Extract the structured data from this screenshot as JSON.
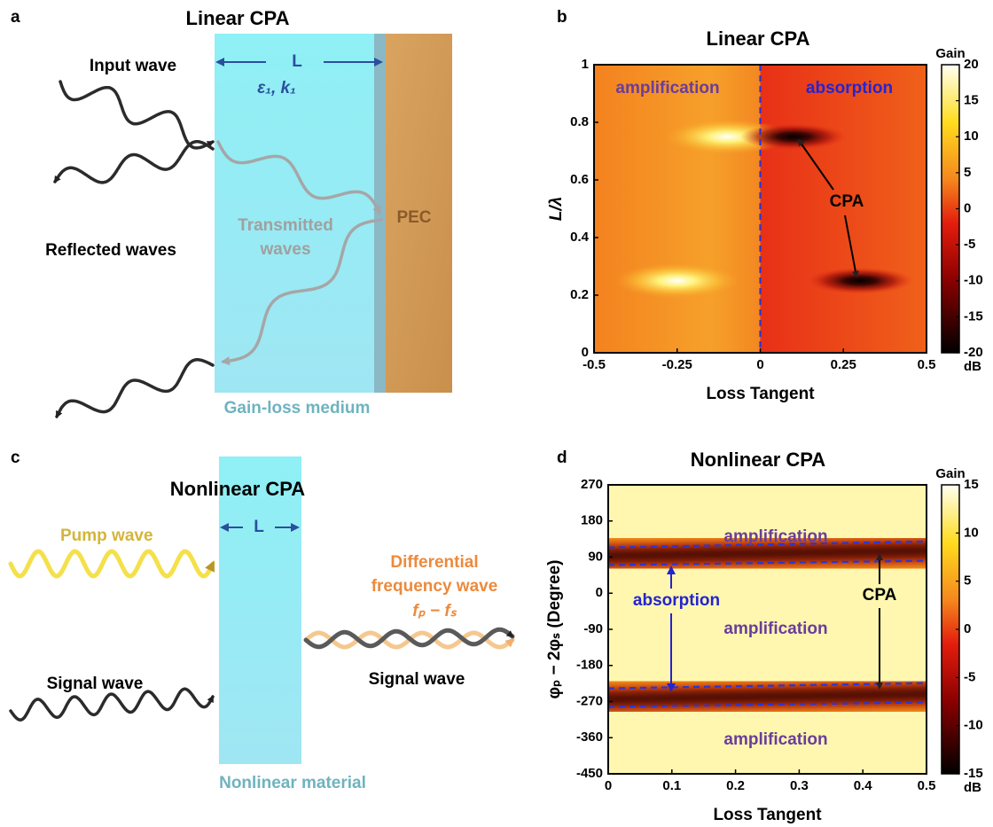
{
  "panels": {
    "a": {
      "letter": "a",
      "title": "Linear CPA",
      "input": "Input wave",
      "length": "L",
      "params": "ε₁,  k₁",
      "transmitted": [
        "Transmitted",
        "waves"
      ],
      "pec": "PEC",
      "reflected": "Reflected waves",
      "medium": "Gain-loss medium"
    },
    "c": {
      "letter": "c",
      "title": "Nonlinear CPA",
      "length": "L",
      "pump": "Pump wave",
      "signal_in": "Signal wave",
      "difference": [
        "Differential",
        "frequency wave"
      ],
      "formula": "fₚ − fₛ",
      "signal_out": "Signal wave",
      "medium": "Nonlinear material"
    }
  },
  "chart_data": [
    {
      "type": "heatmap",
      "letter": "b",
      "title": "Linear CPA",
      "xlabel": "Loss Tangent",
      "ylabel": "L/λ",
      "xlim": [
        -0.5,
        0.5
      ],
      "xticks": [
        -0.5,
        -0.25,
        0,
        0.25,
        0.5
      ],
      "ylim": [
        0,
        1
      ],
      "yticks": [
        0,
        0.2,
        0.4,
        0.6,
        0.8,
        1
      ],
      "colorbar": {
        "title": "Gain",
        "unit": "dB",
        "lim": [
          -20,
          20
        ],
        "ticks": [
          20,
          15,
          10,
          5,
          0,
          -5,
          -10,
          -15,
          -20
        ]
      },
      "vline": {
        "x": 0,
        "color": "#2b35d8"
      },
      "spots": [
        {
          "x": -0.1,
          "y": 0.75,
          "kind": "gain"
        },
        {
          "x": -0.25,
          "y": 0.25,
          "kind": "gain"
        },
        {
          "x": 0.1,
          "y": 0.75,
          "kind": "loss"
        },
        {
          "x": 0.3,
          "y": 0.25,
          "kind": "loss"
        }
      ],
      "annotations": [
        {
          "text": "amplification",
          "color": "#6a3d9a"
        },
        {
          "text": "absorption",
          "color": "#2424d0"
        },
        {
          "text": "CPA",
          "color": "#000000"
        }
      ]
    },
    {
      "type": "heatmap",
      "letter": "d",
      "title": "Nonlinear CPA",
      "xlabel": "Loss Tangent",
      "ylabel": "φₚ − 2φₛ (Degree)",
      "xlim": [
        0,
        0.5
      ],
      "xticks": [
        0,
        0.1,
        0.2,
        0.3,
        0.4,
        0.5
      ],
      "ylim": [
        -450,
        270
      ],
      "yticks": [
        270,
        180,
        90,
        0,
        -90,
        -180,
        -270,
        -360,
        -450
      ],
      "colorbar": {
        "title": "Gain",
        "unit": "dB",
        "lim": [
          -15,
          15
        ],
        "ticks": [
          15,
          10,
          5,
          0,
          -5,
          -10,
          -15
        ]
      },
      "bands": [
        {
          "x": [
            0,
            0.5
          ],
          "y": [
            92,
            107
          ]
        },
        {
          "x": [
            0,
            0.5
          ],
          "y": [
            -265,
            -250
          ]
        }
      ],
      "dashed_lines": [
        {
          "x": [
            0,
            0.5
          ],
          "y": [
            114,
            129
          ]
        },
        {
          "x": [
            0,
            0.5
          ],
          "y": [
            70,
            81
          ]
        },
        {
          "x": [
            0,
            0.5
          ],
          "y": [
            -237,
            -224
          ]
        },
        {
          "x": [
            0,
            0.5
          ],
          "y": [
            -283,
            -272
          ]
        }
      ],
      "dash_color": "#2b35d8",
      "annotations": [
        {
          "text": "amplification",
          "color": "#6a3d9a"
        },
        {
          "text": "absorption",
          "color": "#2424d0"
        },
        {
          "text": "amplification",
          "color": "#6a3d9a"
        },
        {
          "text": "CPA",
          "color": "#000000"
        },
        {
          "text": "amplification",
          "color": "#6a3d9a"
        }
      ]
    }
  ]
}
